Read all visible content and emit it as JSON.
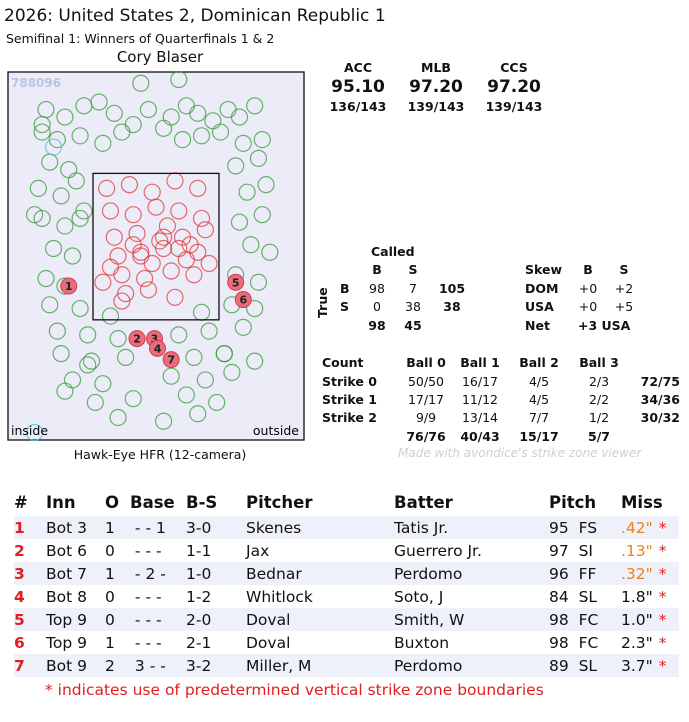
{
  "header": {
    "title": "2026: United States 2, Dominican Republic 1",
    "subtitle": "Semifinal 1: Winners of Quarterfinals 1 & 2",
    "umpire": "Cory Blaser"
  },
  "plot": {
    "id_label": "788096",
    "inside_label": "inside",
    "outside_label": "outside",
    "source_label": "Hawk-Eye HFR (12-camera)",
    "colors": {
      "ball": "#3a9a3a",
      "strike": "#e03a3a",
      "other": "#4cc0d8",
      "miss_fill": "#e86c7a",
      "background": "#ececf8"
    }
  },
  "accuracy": [
    {
      "title": "ACC",
      "value": "95.10",
      "fraction": "136/143"
    },
    {
      "title": "MLB",
      "value": "97.20",
      "fraction": "139/143"
    },
    {
      "title": "CCS",
      "value": "97.20",
      "fraction": "139/143"
    }
  ],
  "called": {
    "title": "Called",
    "col_b": "B",
    "col_s": "S",
    "true_label": "True",
    "row_b": {
      "label": "B",
      "b": "98",
      "s": "7",
      "total": "105"
    },
    "row_s": {
      "label": "S",
      "b": "0",
      "s": "38",
      "total": "38"
    },
    "totals": {
      "b": "98",
      "s": "45"
    }
  },
  "skew": {
    "title": "Skew",
    "col_b": "B",
    "col_s": "S",
    "rows": [
      {
        "label": "DOM",
        "b": "+0",
        "s": "+2"
      },
      {
        "label": "USA",
        "b": "+0",
        "s": "+5"
      },
      {
        "label": "Net",
        "value": "+3 USA"
      }
    ]
  },
  "count": {
    "title": "Count",
    "cols": [
      "Ball 0",
      "Ball 1",
      "Ball 2",
      "Ball 3"
    ],
    "rows": [
      {
        "label": "Strike 0",
        "cells": [
          "50/50",
          "16/17",
          "4/5",
          "2/3"
        ],
        "total": "72/75"
      },
      {
        "label": "Strike 1",
        "cells": [
          "17/17",
          "11/12",
          "4/5",
          "2/2"
        ],
        "total": "34/36"
      },
      {
        "label": "Strike 2",
        "cells": [
          "9/9",
          "13/14",
          "7/7",
          "1/2"
        ],
        "total": "30/32"
      }
    ],
    "col_totals": [
      "76/76",
      "40/43",
      "15/17",
      "5/7"
    ]
  },
  "credit": "Made with avondice's strike zone viewer",
  "table": {
    "headers": [
      "#",
      "Inn",
      "O",
      "Base",
      "B-S",
      "Pitcher",
      "Batter",
      "Pitch",
      "Miss"
    ],
    "rows": [
      {
        "n": "1",
        "inn": "Bot 3",
        "o": "1",
        "base": " - - 1",
        "bs": "3-0",
        "pitcher": "Skenes",
        "batter": "Tatis Jr.",
        "pitch": "95  FS",
        "miss": ".42\"",
        "star": "*",
        "orange": true
      },
      {
        "n": "2",
        "inn": "Bot 6",
        "o": "0",
        "base": " - - -",
        "bs": "1-1",
        "pitcher": "Jax",
        "batter": "Guerrero Jr.",
        "pitch": "97  SI",
        "miss": ".13\"",
        "star": "*",
        "orange": true
      },
      {
        "n": "3",
        "inn": "Bot 7",
        "o": "1",
        "base": " - 2 -",
        "bs": "1-0",
        "pitcher": "Bednar",
        "batter": "Perdomo",
        "pitch": "96  FF",
        "miss": ".32\"",
        "star": "*",
        "orange": true
      },
      {
        "n": "4",
        "inn": "Bot 8",
        "o": "0",
        "base": " - - -",
        "bs": "1-2",
        "pitcher": "Whitlock",
        "batter": "Soto, J",
        "pitch": "84  SL",
        "miss": "1.8\"",
        "star": "*",
        "orange": false
      },
      {
        "n": "5",
        "inn": "Top 9",
        "o": "0",
        "base": " - - -",
        "bs": "2-0",
        "pitcher": "Doval",
        "batter": "Smith, W",
        "pitch": "98  FC",
        "miss": "1.0\"",
        "star": "*",
        "orange": false
      },
      {
        "n": "6",
        "inn": "Top 9",
        "o": "1",
        "base": " - - -",
        "bs": "2-1",
        "pitcher": "Doval",
        "batter": "Buxton",
        "pitch": "98  FC",
        "miss": "2.3\"",
        "star": "*",
        "orange": false
      },
      {
        "n": "7",
        "inn": "Bot 9",
        "o": "2",
        "base": " 3 - -",
        "bs": "3-2",
        "pitcher": "Miller, M",
        "batter": "Perdomo",
        "pitch": "89  SL",
        "miss": "3.7\"",
        "star": "*",
        "orange": false
      }
    ],
    "footnote": "* indicates use of predetermined vertical strike zone boundaries"
  },
  "chart_data": {
    "type": "scatter",
    "title": "Cory Blaser",
    "xlabel": "",
    "ylabel": "",
    "series": [
      {
        "name": "",
        "color": "#3a9a3a",
        "x": [
          -1.45,
          -1.2,
          -0.95,
          -0.75,
          -0.55,
          -0.3,
          -0.1,
          0.2,
          0.4,
          0.55,
          0.75,
          0.95,
          1.1,
          1.3,
          -1.5,
          -1.3,
          -1.0,
          -0.7,
          -0.45,
          0.1,
          0.35,
          0.6,
          0.85,
          1.15,
          1.4,
          -1.4,
          -1.15,
          1.05,
          1.35,
          -1.55,
          -1.25,
          -1.05,
          1.2,
          1.45,
          -1.5,
          -1.2,
          -0.95,
          1.1,
          1.4,
          -1.35,
          -1.1,
          1.25,
          1.5,
          -1.45,
          -1.2,
          1.05,
          1.35,
          -1.4,
          -1.0,
          -0.6,
          0.6,
          1.0,
          1.3,
          -1.3,
          -0.9,
          -0.5,
          0.3,
          0.7,
          1.15,
          -1.25,
          -0.85,
          -0.4,
          0.5,
          0.9,
          1.3,
          -1.1,
          -0.7,
          0.2,
          0.65,
          1.0,
          -0.8,
          -0.3,
          0.4,
          0.8,
          -0.5,
          0.1,
          0.55,
          -0.2,
          0.3,
          -1.5,
          -1.6,
          -1.0,
          0.9,
          -0.9,
          -1.2
        ],
        "y": [
          4.4,
          4.3,
          4.45,
          4.5,
          4.35,
          4.2,
          4.4,
          4.3,
          4.45,
          4.35,
          4.25,
          4.4,
          4.3,
          4.45,
          4.1,
          4.0,
          4.05,
          3.95,
          4.1,
          4.15,
          4.0,
          4.05,
          4.1,
          3.95,
          4.0,
          3.7,
          3.6,
          3.65,
          3.75,
          3.35,
          3.25,
          3.45,
          3.3,
          3.4,
          2.95,
          2.85,
          3.05,
          2.9,
          3.0,
          2.55,
          2.45,
          2.6,
          2.5,
          2.15,
          2.05,
          2.2,
          2.1,
          1.8,
          1.75,
          1.65,
          1.7,
          1.8,
          1.75,
          1.45,
          1.4,
          1.35,
          1.4,
          1.45,
          1.5,
          1.15,
          1.05,
          1.1,
          1.1,
          1.15,
          1.05,
          0.8,
          0.75,
          0.85,
          0.8,
          0.9,
          0.5,
          0.55,
          0.6,
          0.5,
          0.3,
          0.25,
          0.35,
          4.75,
          4.8,
          4.2,
          3.0,
          2.95,
          1.15,
          1.0,
          0.65
        ]
      },
      {
        "name": "",
        "color": "#e03a3a",
        "x": [
          -0.65,
          -0.35,
          -0.05,
          0.25,
          0.55,
          -0.6,
          -0.3,
          0.0,
          0.3,
          0.6,
          -0.55,
          -0.25,
          0.05,
          0.35,
          0.65,
          -0.5,
          -0.2,
          0.1,
          0.4,
          -0.45,
          -0.15,
          0.2,
          0.5,
          -0.4,
          -0.1,
          0.25,
          -0.6,
          0.55,
          -0.3,
          0.15,
          -0.05,
          0.1,
          0.45,
          -0.7,
          0.7,
          -0.2,
          0.3,
          -0.45
        ],
        "y": [
          3.35,
          3.4,
          3.3,
          3.45,
          3.35,
          3.05,
          3.0,
          3.1,
          3.05,
          2.95,
          2.7,
          2.75,
          2.65,
          2.7,
          2.8,
          2.45,
          2.5,
          2.55,
          2.4,
          2.2,
          2.15,
          2.25,
          2.2,
          1.95,
          2.0,
          1.9,
          2.3,
          2.5,
          2.6,
          2.85,
          2.35,
          2.7,
          2.6,
          2.1,
          2.35,
          2.45,
          2.55,
          1.85
        ]
      },
      {
        "name": "",
        "color": "#4cc0d8",
        "x": [
          -1.35,
          -1.6
        ],
        "y": [
          3.9,
          0.1
        ]
      }
    ],
    "missed_calls": [
      {
        "label": "1",
        "x": -1.15,
        "y": 2.05
      },
      {
        "label": "2",
        "x": -0.25,
        "y": 1.35
      },
      {
        "label": "3",
        "x": -0.02,
        "y": 1.35
      },
      {
        "label": "4",
        "x": 0.02,
        "y": 1.22
      },
      {
        "label": "5",
        "x": 1.05,
        "y": 2.1
      },
      {
        "label": "6",
        "x": 1.15,
        "y": 1.87
      },
      {
        "label": "7",
        "x": 0.2,
        "y": 1.07
      }
    ],
    "strike_zone": {
      "x": [
        -0.83,
        0.83
      ],
      "y": [
        1.6,
        3.55
      ]
    },
    "xlim": [
      -1.95,
      1.95
    ],
    "ylim": [
      0.0,
      4.9
    ]
  }
}
